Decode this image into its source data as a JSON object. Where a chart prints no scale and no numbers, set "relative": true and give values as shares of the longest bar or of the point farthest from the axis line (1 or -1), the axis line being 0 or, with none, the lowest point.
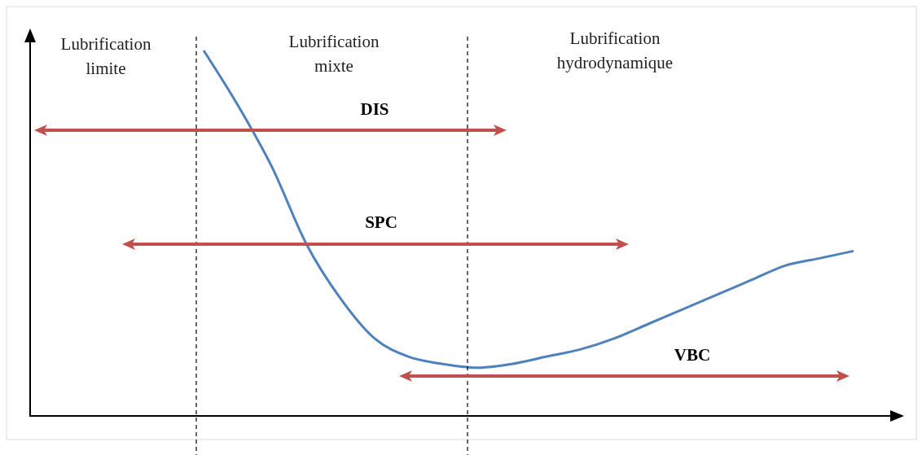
{
  "chart_data": {
    "type": "line",
    "relative": true,
    "categories": [
      null,
      null,
      null,
      null,
      null,
      null,
      null,
      null,
      null,
      null,
      null,
      null,
      null,
      null,
      null,
      null,
      null,
      null,
      null,
      null,
      null,
      null,
      null,
      null,
      null,
      null
    ],
    "series": [
      {
        "color": "#4f81bd",
        "values": [
          null,
          null,
          null,
          null,
          null,
          1.0,
          0.85,
          0.68,
          0.47,
          0.32,
          0.21,
          0.16,
          0.14,
          0.13,
          0.14,
          0.16,
          0.18,
          0.21,
          0.25,
          0.29,
          0.33,
          0.37,
          0.41,
          0.43,
          0.45,
          null
        ]
      }
    ],
    "annotations": [
      "Lubrification limite",
      "Lubrification mixte",
      "Lubrification hydrodynamique",
      "DIS",
      "SPC",
      "VBC"
    ],
    "grid": false,
    "legend": false,
    "marker": "none",
    "line_style": "solid"
  }
}
